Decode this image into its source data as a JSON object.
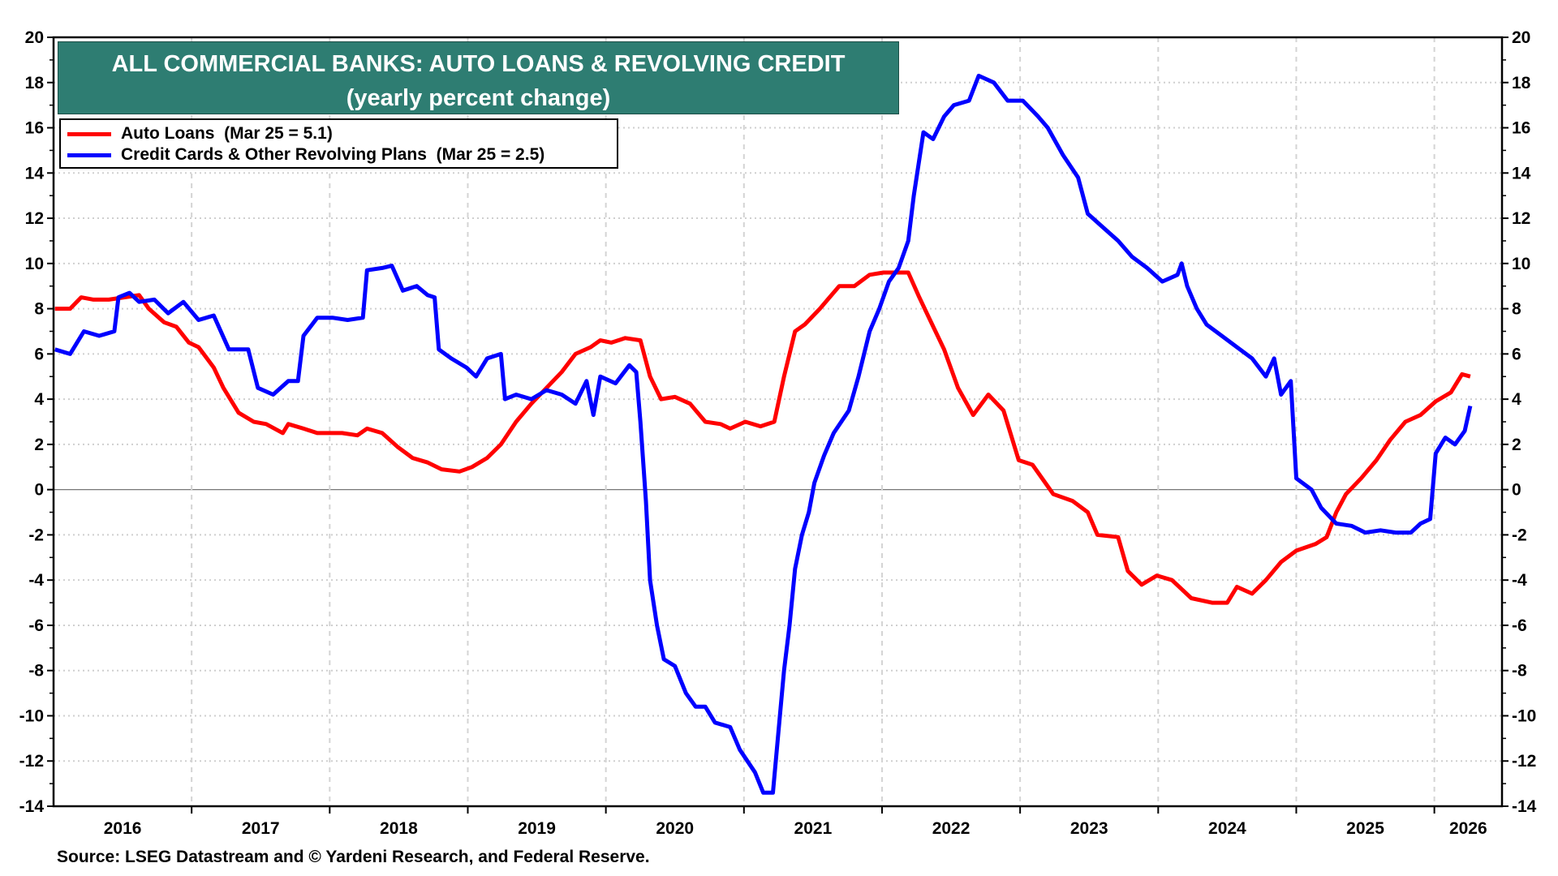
{
  "chart_data": {
    "type": "line",
    "title": "ALL COMMERCIAL BANKS: AUTO LOANS & REVOLVING CREDIT",
    "subtitle": "(yearly percent change)",
    "xlabel": "",
    "ylabel": "",
    "xlim": [
      2016.0,
      2026.49
    ],
    "ylim": [
      -14,
      20
    ],
    "yticks": [
      20,
      18,
      16,
      14,
      12,
      10,
      8,
      6,
      4,
      2,
      0,
      -2,
      -4,
      -6,
      -8,
      -10,
      -12,
      -14
    ],
    "xtick_labels": [
      "2016",
      "2017",
      "2018",
      "2019",
      "2020",
      "2021",
      "2022",
      "2023",
      "2024",
      "2025",
      "2026"
    ],
    "grid": true,
    "right_axis_mirror": true,
    "legend_placement": "top-left",
    "source": "Source: LSEG Datastream and © Yardeni Research, and Federal Reserve.",
    "series": [
      {
        "name": "Auto Loans  (Mar 25 = 5.1)",
        "color": "#ff0000",
        "x": [
          2016.01,
          2016.12,
          2016.2,
          2016.29,
          2016.4,
          2016.51,
          2016.62,
          2016.69,
          2016.8,
          2016.89,
          2016.98,
          2017.05,
          2017.16,
          2017.23,
          2017.34,
          2017.45,
          2017.54,
          2017.66,
          2017.7,
          2017.81,
          2017.91,
          2017.99,
          2018.09,
          2018.2,
          2018.27,
          2018.38,
          2018.49,
          2018.6,
          2018.71,
          2018.81,
          2018.94,
          2019.03,
          2019.14,
          2019.24,
          2019.35,
          2019.46,
          2019.57,
          2019.68,
          2019.78,
          2019.89,
          2019.96,
          2020.04,
          2020.14,
          2020.25,
          2020.32,
          2020.4,
          2020.5,
          2020.61,
          2020.72,
          2020.83,
          2020.9,
          2021.01,
          2021.12,
          2021.22,
          2021.29,
          2021.37,
          2021.44,
          2021.55,
          2021.69,
          2021.8,
          2021.91,
          2022.01,
          2022.12,
          2022.19,
          2022.27,
          2022.34,
          2022.45,
          2022.55,
          2022.66,
          2022.77,
          2022.88,
          2022.99,
          2023.09,
          2023.24,
          2023.38,
          2023.49,
          2023.56,
          2023.71,
          2023.78,
          2023.88,
          2023.99,
          2024.1,
          2024.24,
          2024.39,
          2024.5,
          2024.57,
          2024.68,
          2024.78,
          2024.89,
          2025.0,
          2025.14,
          2025.22,
          2025.29,
          2025.36,
          2025.47,
          2025.58,
          2025.68,
          2025.79,
          2025.9,
          2026.01,
          2026.12,
          2026.2,
          2026.26
        ],
        "y": [
          8.0,
          8.0,
          8.5,
          8.4,
          8.4,
          8.5,
          8.6,
          8.0,
          7.4,
          7.2,
          6.5,
          6.3,
          5.4,
          4.5,
          3.4,
          3.0,
          2.9,
          2.5,
          2.9,
          2.7,
          2.5,
          2.5,
          2.5,
          2.4,
          2.7,
          2.5,
          1.9,
          1.4,
          1.2,
          0.9,
          0.8,
          1.0,
          1.4,
          2.0,
          3.0,
          3.8,
          4.5,
          5.2,
          6.0,
          6.3,
          6.6,
          6.5,
          6.7,
          6.6,
          5.0,
          4.0,
          4.1,
          3.8,
          3.0,
          2.9,
          2.7,
          3.0,
          2.8,
          3.0,
          5.0,
          7.0,
          7.3,
          8.0,
          9.0,
          9.0,
          9.5,
          9.6,
          9.6,
          9.6,
          8.5,
          7.6,
          6.2,
          4.5,
          3.3,
          4.2,
          3.5,
          1.3,
          1.1,
          -0.2,
          -0.5,
          -1.0,
          -2.0,
          -2.1,
          -3.6,
          -4.2,
          -3.8,
          -4.0,
          -4.8,
          -5.0,
          -5.0,
          -4.3,
          -4.6,
          -4.0,
          -3.2,
          -2.7,
          -2.4,
          -2.1,
          -1.0,
          -0.2,
          0.5,
          1.3,
          2.2,
          3.0,
          3.3,
          3.9,
          4.3,
          5.1,
          5.0
        ]
      },
      {
        "name": "Credit Cards & Other Revolving Plans  (Mar 25 = 2.5)",
        "color": "#0000ff",
        "x": [
          2016.01,
          2016.12,
          2016.22,
          2016.33,
          2016.44,
          2016.47,
          2016.55,
          2016.62,
          2016.73,
          2016.83,
          2016.94,
          2017.05,
          2017.16,
          2017.27,
          2017.41,
          2017.48,
          2017.59,
          2017.7,
          2017.77,
          2017.81,
          2017.91,
          2018.02,
          2018.13,
          2018.24,
          2018.27,
          2018.38,
          2018.45,
          2018.53,
          2018.63,
          2018.71,
          2018.76,
          2018.79,
          2018.88,
          2018.99,
          2019.06,
          2019.14,
          2019.24,
          2019.27,
          2019.35,
          2019.46,
          2019.57,
          2019.68,
          2019.78,
          2019.86,
          2019.91,
          2019.96,
          2020.07,
          2020.17,
          2020.22,
          2020.25,
          2020.29,
          2020.32,
          2020.37,
          2020.42,
          2020.5,
          2020.58,
          2020.65,
          2020.72,
          2020.79,
          2020.9,
          2020.97,
          2021.08,
          2021.14,
          2021.21,
          2021.26,
          2021.29,
          2021.33,
          2021.37,
          2021.42,
          2021.47,
          2021.51,
          2021.58,
          2021.65,
          2021.76,
          2021.83,
          2021.91,
          2021.98,
          2022.05,
          2022.12,
          2022.19,
          2022.23,
          2022.3,
          2022.37,
          2022.45,
          2022.52,
          2022.63,
          2022.7,
          2022.81,
          2022.91,
          2023.02,
          2023.13,
          2023.2,
          2023.31,
          2023.42,
          2023.49,
          2023.6,
          2023.71,
          2023.81,
          2023.92,
          2024.03,
          2024.14,
          2024.17,
          2024.21,
          2024.28,
          2024.35,
          2024.46,
          2024.57,
          2024.68,
          2024.78,
          2024.84,
          2024.89,
          2024.96,
          2025.0,
          2025.11,
          2025.18,
          2025.29,
          2025.4,
          2025.5,
          2025.61,
          2025.72,
          2025.83,
          2025.9,
          2025.97,
          2026.01,
          2026.08,
          2026.15,
          2026.22,
          2026.26
        ],
        "y": [
          6.2,
          6.0,
          7.0,
          6.8,
          7.0,
          8.5,
          8.7,
          8.3,
          8.4,
          7.8,
          8.3,
          7.5,
          7.7,
          6.2,
          6.2,
          4.5,
          4.2,
          4.8,
          4.8,
          6.8,
          7.6,
          7.6,
          7.5,
          7.6,
          9.7,
          9.8,
          9.9,
          8.8,
          9.0,
          8.6,
          8.5,
          6.2,
          5.8,
          5.4,
          5.0,
          5.8,
          6.0,
          4.0,
          4.2,
          4.0,
          4.4,
          4.2,
          3.8,
          4.8,
          3.3,
          5.0,
          4.7,
          5.5,
          5.2,
          3.0,
          -0.5,
          -4.0,
          -6.0,
          -7.5,
          -7.8,
          -9.0,
          -9.6,
          -9.6,
          -10.3,
          -10.5,
          -11.5,
          -12.5,
          -13.4,
          -13.4,
          -10.0,
          -8.0,
          -6.0,
          -3.5,
          -2.0,
          -1.0,
          0.3,
          1.5,
          2.5,
          3.5,
          5.0,
          7.0,
          8.0,
          9.2,
          9.8,
          11.0,
          13.0,
          15.8,
          15.5,
          16.5,
          17.0,
          17.2,
          18.3,
          18.0,
          17.2,
          17.2,
          16.5,
          16.0,
          14.8,
          13.8,
          12.2,
          11.6,
          11.0,
          10.3,
          9.8,
          9.2,
          9.5,
          10.0,
          9.0,
          8.0,
          7.3,
          6.8,
          6.3,
          5.8,
          5.0,
          5.8,
          4.2,
          4.8,
          0.5,
          0.0,
          -0.8,
          -1.5,
          -1.6,
          -1.9,
          -1.8,
          -1.9,
          -1.9,
          -1.5,
          -1.3,
          1.6,
          2.3,
          2.0,
          2.6,
          3.7
        ]
      }
    ]
  }
}
